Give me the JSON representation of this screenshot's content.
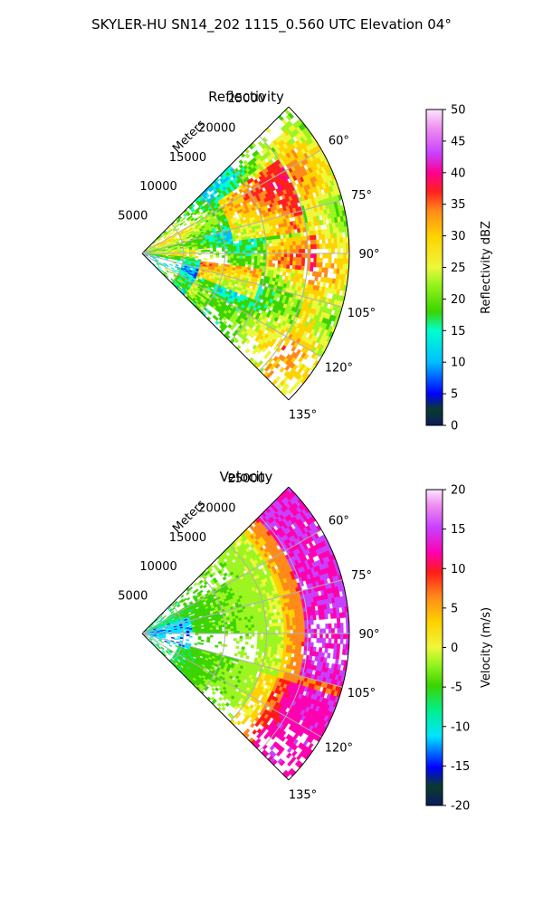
{
  "figure": {
    "title": "SKYLER-HU  SN14_202  1115_0.560 UTC Elevation 04°"
  },
  "chart_data": [
    {
      "type": "heatmap",
      "title": "Reflectivity",
      "projection": "polar sector",
      "theta_range_deg": [
        45,
        135
      ],
      "theta_ticks": [
        "60°",
        "75°",
        "90°",
        "105°",
        "120°",
        "135°"
      ],
      "r_range_m": [
        0,
        25000
      ],
      "r_ticks": [
        "5000",
        "10000",
        "15000",
        "20000",
        "25000"
      ],
      "r_axis_label": "Meters",
      "colorbar": {
        "label": "Reflectivity dBZ",
        "range": [
          0,
          50
        ],
        "ticks": [
          "0",
          "5",
          "10",
          "15",
          "20",
          "25",
          "30",
          "35",
          "40",
          "45",
          "50"
        ]
      },
      "features": [
        {
          "region": "north-central (theta 60-80°, r 12000-20000 m)",
          "value_dbz": 35
        },
        {
          "region": "south-central (theta 100-110°, r 8000-14000 m)",
          "value_dbz": 35
        },
        {
          "region": "outer edge (r > 20000 m)",
          "value_dbz": 28
        },
        {
          "region": "inner west near radar",
          "value_dbz": 15
        }
      ],
      "grid": true
    },
    {
      "type": "heatmap",
      "title": "Velocity",
      "projection": "polar sector",
      "theta_range_deg": [
        45,
        135
      ],
      "theta_ticks": [
        "60°",
        "75°",
        "90°",
        "105°",
        "120°",
        "135°"
      ],
      "r_range_m": [
        0,
        25000
      ],
      "r_ticks": [
        "5000",
        "10000",
        "15000",
        "20000",
        "25000"
      ],
      "r_axis_label": "Meters",
      "colorbar": {
        "label": "Velocity (m/s)",
        "range": [
          -20,
          20
        ],
        "ticks": [
          "-20",
          "-15",
          "-10",
          "-5",
          "0",
          "5",
          "10",
          "15",
          "20"
        ]
      },
      "features": [
        {
          "region": "near radar",
          "value_ms": -10
        },
        {
          "region": "mid range",
          "value_ms": -5
        },
        {
          "region": "r 18000-21000 m",
          "value_ms": 2
        },
        {
          "region": "outer east (theta 60-105°)",
          "value_ms": 15
        },
        {
          "region": "outer south (theta 105-125°)",
          "value_ms": 10
        }
      ],
      "grid": true
    }
  ]
}
